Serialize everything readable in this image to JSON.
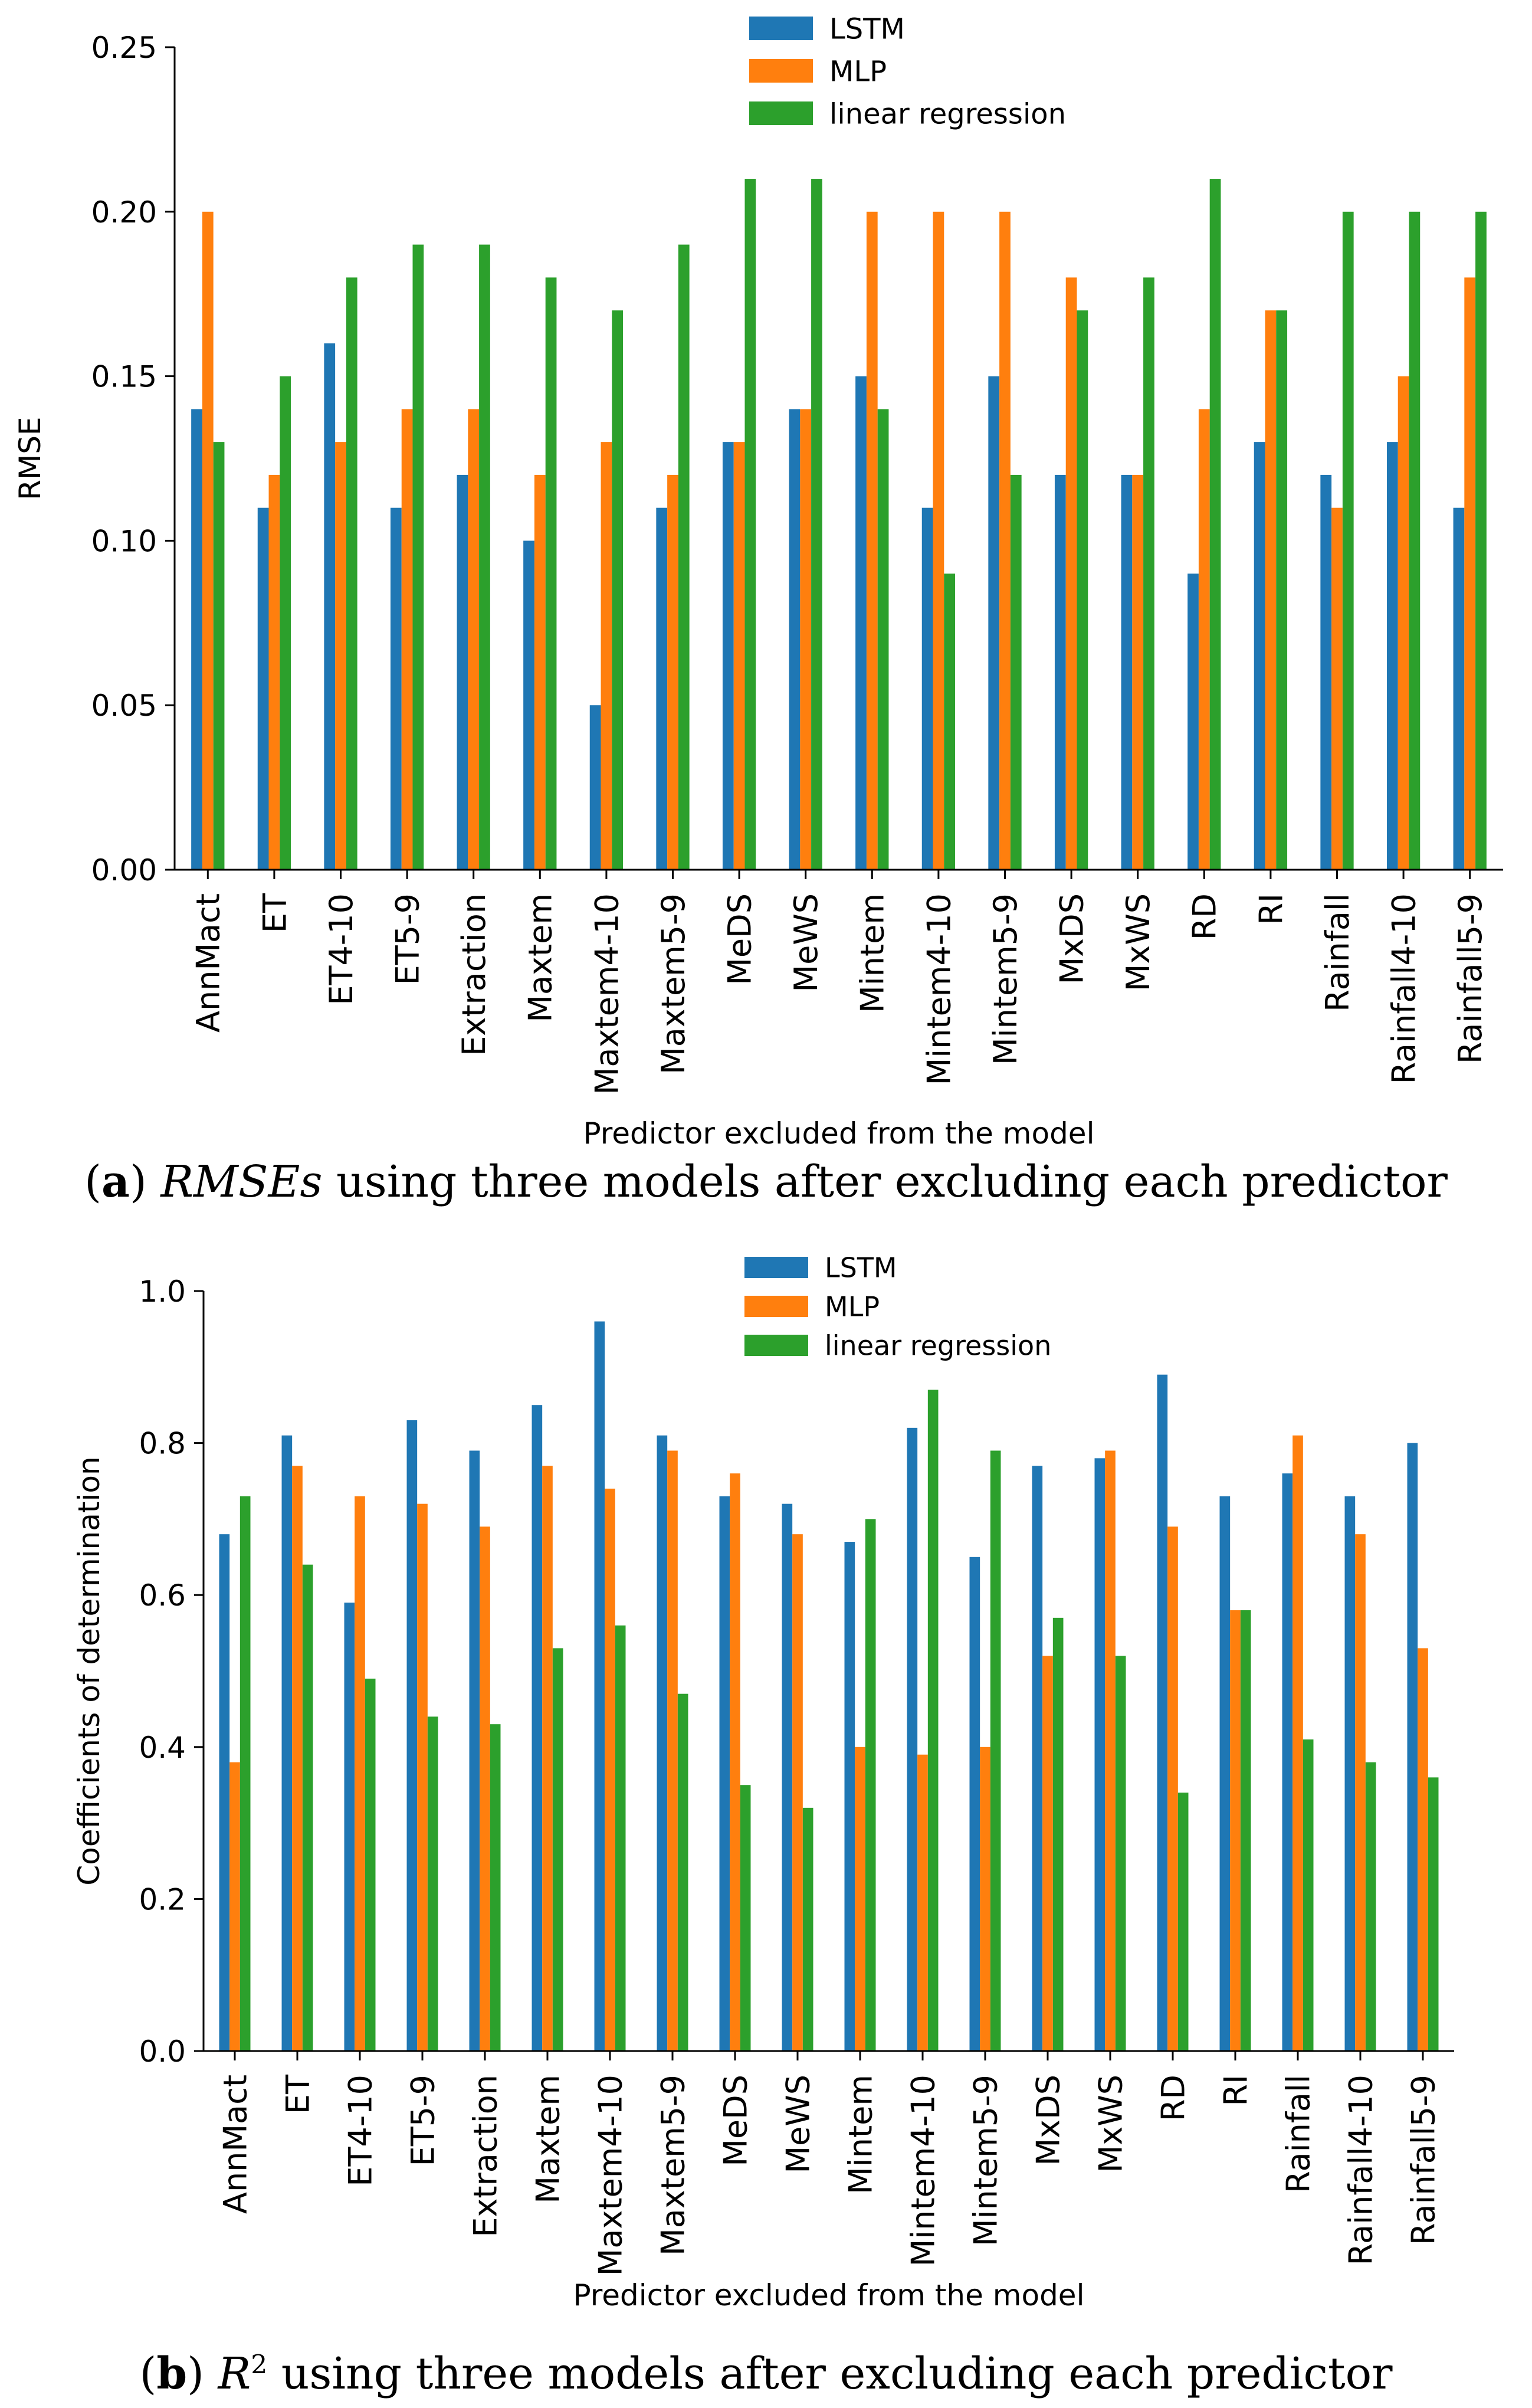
{
  "chart_data": [
    {
      "type": "bar",
      "panel": "a",
      "xlabel": "Predictor excluded from the model",
      "ylabel": "RMSE",
      "ylim": [
        0,
        0.25
      ],
      "yticks": [
        "0.00",
        "0.05",
        "0.10",
        "0.15",
        "0.20",
        "0.25"
      ],
      "legend_position": "top-center",
      "categories": [
        "AnnMact",
        "ET",
        "ET4-10",
        "ET5-9",
        "Extraction",
        "Maxtem",
        "Maxtem4-10",
        "Maxtem5-9",
        "MeDS",
        "MeWS",
        "Mintem",
        "Mintem4-10",
        "Mintem5-9",
        "MxDS",
        "MxWS",
        "RD",
        "RI",
        "Rainfall",
        "Rainfall4-10",
        "Rainfall5-9"
      ],
      "series": [
        {
          "name": "LSTM",
          "color": "#1f77b4",
          "values": [
            0.14,
            0.11,
            0.16,
            0.11,
            0.12,
            0.1,
            0.05,
            0.11,
            0.13,
            0.14,
            0.15,
            0.11,
            0.15,
            0.12,
            0.12,
            0.09,
            0.13,
            0.12,
            0.13,
            0.11
          ]
        },
        {
          "name": "MLP",
          "color": "#ff7f0e",
          "values": [
            0.2,
            0.12,
            0.13,
            0.14,
            0.14,
            0.12,
            0.13,
            0.12,
            0.13,
            0.14,
            0.2,
            0.2,
            0.2,
            0.18,
            0.12,
            0.14,
            0.17,
            0.11,
            0.15,
            0.18
          ]
        },
        {
          "name": "linear regression",
          "color": "#2ca02c",
          "values": [
            0.13,
            0.15,
            0.18,
            0.19,
            0.19,
            0.18,
            0.17,
            0.19,
            0.21,
            0.21,
            0.14,
            0.09,
            0.12,
            0.17,
            0.18,
            0.21,
            0.17,
            0.2,
            0.2,
            0.2
          ]
        }
      ]
    },
    {
      "type": "bar",
      "panel": "b",
      "xlabel": "Predictor excluded from the model",
      "ylabel": "Coefficients of determination",
      "ylim": [
        0,
        1.0
      ],
      "yticks": [
        "0.0",
        "0.2",
        "0.4",
        "0.6",
        "0.8",
        "1.0"
      ],
      "legend_position": "top-center",
      "categories": [
        "AnnMact",
        "ET",
        "ET4-10",
        "ET5-9",
        "Extraction",
        "Maxtem",
        "Maxtem4-10",
        "Maxtem5-9",
        "MeDS",
        "MeWS",
        "Mintem",
        "Mintem4-10",
        "Mintem5-9",
        "MxDS",
        "MxWS",
        "RD",
        "RI",
        "Rainfall",
        "Rainfall4-10",
        "Rainfall5-9"
      ],
      "series": [
        {
          "name": "LSTM",
          "color": "#1f77b4",
          "values": [
            0.68,
            0.81,
            0.59,
            0.83,
            0.79,
            0.85,
            0.96,
            0.81,
            0.73,
            0.72,
            0.67,
            0.82,
            0.65,
            0.77,
            0.78,
            0.89,
            0.73,
            0.76,
            0.73,
            0.8
          ]
        },
        {
          "name": "MLP",
          "color": "#ff7f0e",
          "values": [
            0.38,
            0.77,
            0.73,
            0.72,
            0.69,
            0.77,
            0.74,
            0.79,
            0.76,
            0.68,
            0.4,
            0.39,
            0.4,
            0.52,
            0.79,
            0.69,
            0.58,
            0.81,
            0.68,
            0.53
          ]
        },
        {
          "name": "linear regression",
          "color": "#2ca02c",
          "values": [
            0.73,
            0.64,
            0.49,
            0.44,
            0.43,
            0.53,
            0.56,
            0.47,
            0.35,
            0.32,
            0.7,
            0.87,
            0.79,
            0.57,
            0.52,
            0.34,
            0.58,
            0.41,
            0.38,
            0.36
          ]
        }
      ]
    }
  ],
  "captions": {
    "a": {
      "label": "a",
      "italic": "RMSEs",
      "text": " using three models after excluding each predictor"
    },
    "b": {
      "label": "b",
      "italic": "R",
      "sup": "2",
      "text": " using three models after excluding each predictor"
    }
  }
}
